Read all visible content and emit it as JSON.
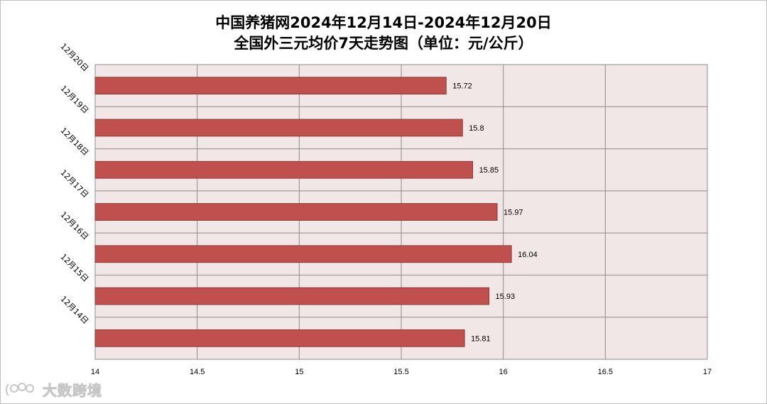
{
  "title_line1": "中国养猪网2024年12月14日-2024年12月20日",
  "title_line2": "全国外三元均价7天走势图（单位：元/公斤）",
  "watermark_text": "大数跨境",
  "chart_data": {
    "type": "bar",
    "orientation": "horizontal",
    "title": "中国养猪网2024年12月14日-2024年12月20日 全国外三元均价7天走势图（单位：元/公斤）",
    "categories": [
      "12月20日",
      "12月19日",
      "12月18日",
      "12月17日",
      "12月16日",
      "12月15日",
      "12月14日"
    ],
    "values": [
      15.72,
      15.8,
      15.85,
      15.97,
      16.04,
      15.93,
      15.81
    ],
    "value_labels": [
      "15.72",
      "15.8",
      "15.85",
      "15.97",
      "16.04",
      "15.93",
      "15.81"
    ],
    "xlim": [
      14,
      17
    ],
    "x_ticks": [
      14,
      14.5,
      15,
      15.5,
      16,
      16.5,
      17
    ],
    "x_tick_labels": [
      "14",
      "14.5",
      "15",
      "15.5",
      "16",
      "16.5",
      "17"
    ],
    "grid": true,
    "bar_color": "#c0504d",
    "bar_border_color": "#8c3836",
    "plot_background": "#f2e7e7",
    "grid_color": "#8c8c8c"
  }
}
